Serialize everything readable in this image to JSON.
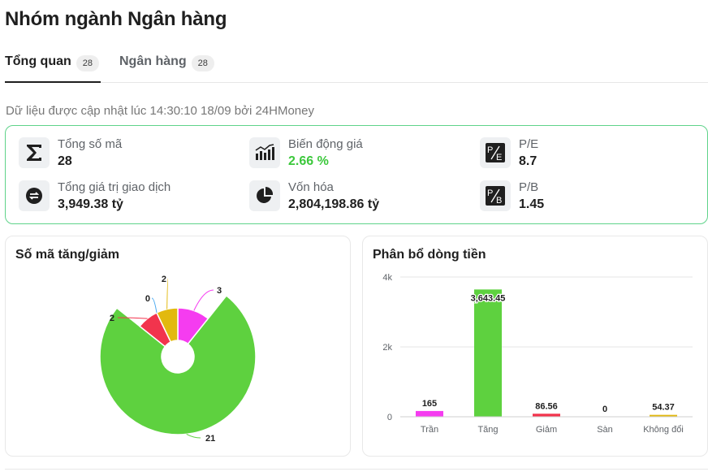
{
  "page": {
    "title": "Nhóm ngành Ngân hàng"
  },
  "tabs": [
    {
      "label": "Tổng quan",
      "count": "28",
      "active": true
    },
    {
      "label": "Ngân hàng",
      "count": "28",
      "active": false
    }
  ],
  "update_note": "Dữ liệu được cập nhật lúc 14:30:10 18/09 bởi 24HMoney",
  "stats": {
    "total_codes": {
      "label": "Tổng số mã",
      "value": "28",
      "icon": "sigma-icon"
    },
    "price_change": {
      "label": "Biến động giá",
      "value": "2.66 %",
      "icon": "bar-chart-icon",
      "color": "#3cc83c"
    },
    "pe": {
      "label": "P/E",
      "value": "8.7",
      "icon": "pe-icon"
    },
    "trade_value": {
      "label": "Tổng giá trị giao dịch",
      "value": "3,949.38 tỷ",
      "icon": "exchange-icon"
    },
    "market_cap": {
      "label": "Vốn hóa",
      "value": "2,804,198.86 tỷ",
      "icon": "pie-icon"
    },
    "pb": {
      "label": "P/B",
      "value": "1.45",
      "icon": "pb-icon"
    }
  },
  "cards": {
    "updown": {
      "title": "Số mã tăng/giảm"
    },
    "flow": {
      "title": "Phân bổ dòng tiền"
    }
  },
  "chart_data": [
    {
      "type": "pie",
      "title": "Số mã tăng/giảm",
      "slices": [
        {
          "label": "Trần",
          "value": 3,
          "color": "#f53cf0"
        },
        {
          "label": "Tăng",
          "value": 21,
          "color": "#5ed13f"
        },
        {
          "label": "Giảm",
          "value": 2,
          "color": "#f2344d"
        },
        {
          "label": "Sàn",
          "value": 0,
          "color": "#4aa9f0"
        },
        {
          "label": "Không đổi",
          "value": 2,
          "color": "#e2b90f"
        }
      ]
    },
    {
      "type": "bar",
      "title": "Phân bổ dòng tiền",
      "categories": [
        "Trần",
        "Tăng",
        "Giảm",
        "Sàn",
        "Không đổi"
      ],
      "values": [
        165,
        3643.45,
        86.56,
        0,
        54.37
      ],
      "value_labels": [
        "165",
        "3,643.45",
        "86.56",
        "0",
        "54.37"
      ],
      "colors": [
        "#f53cf0",
        "#5ed13f",
        "#f2344d",
        "#4aa9f0",
        "#e2b90f"
      ],
      "ylim": [
        0,
        4000
      ],
      "yticks": [
        0,
        2000,
        4000
      ],
      "ytick_labels": [
        "0",
        "2k",
        "4k"
      ],
      "grid": true
    }
  ]
}
